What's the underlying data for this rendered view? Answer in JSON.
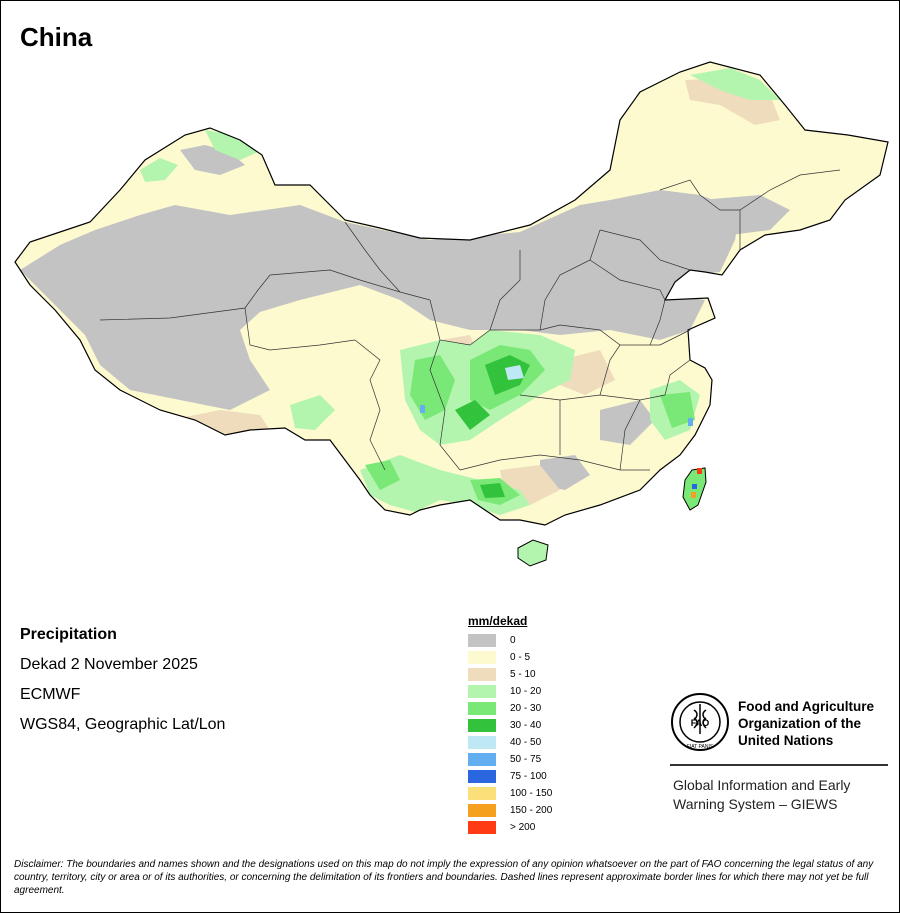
{
  "title": "China",
  "info": {
    "variable": "Precipitation",
    "period": "Dekad 2 November 2025",
    "source": "ECMWF",
    "projection": "WGS84, Geographic Lat/Lon"
  },
  "legend": {
    "title": "mm/dekad",
    "classes": [
      {
        "label": "0",
        "color": "#c3c3c3"
      },
      {
        "label": "0 - 5",
        "color": "#fefad0"
      },
      {
        "label": "5 - 10",
        "color": "#eedcbc"
      },
      {
        "label": "10 - 20",
        "color": "#b3f5ae"
      },
      {
        "label": "20 - 30",
        "color": "#7ae876"
      },
      {
        "label": "30 - 40",
        "color": "#33c23c"
      },
      {
        "label": "40 - 50",
        "color": "#bfe8f5"
      },
      {
        "label": "50 - 75",
        "color": "#63aef0"
      },
      {
        "label": "75 - 100",
        "color": "#2a66e0"
      },
      {
        "label": "100 - 150",
        "color": "#fbe07a"
      },
      {
        "label": "150 - 200",
        "color": "#f5a01e"
      },
      {
        "label": "> 200",
        "color": "#ff3b14"
      }
    ]
  },
  "org": {
    "logo_icon": "fao-logo-icon",
    "logo_text": "FAO",
    "logo_motto": "FIAT PANIS",
    "name_line1": "Food and Agriculture",
    "name_line2": "Organization of the",
    "name_line3": "United Nations",
    "system_line1": "Global Information and Early",
    "system_line2": "Warning System – GIEWS"
  },
  "disclaimer": "Disclaimer: The boundaries and names shown and the designations used on this map do not imply the expression of any opinion whatsoever on the part of FAO concerning the legal status of any country, territory, city or area or of its authorities, or concerning the delimitation of its frontiers and boundaries. Dashed lines represent approximate border lines for which there may not yet be full agreement."
}
